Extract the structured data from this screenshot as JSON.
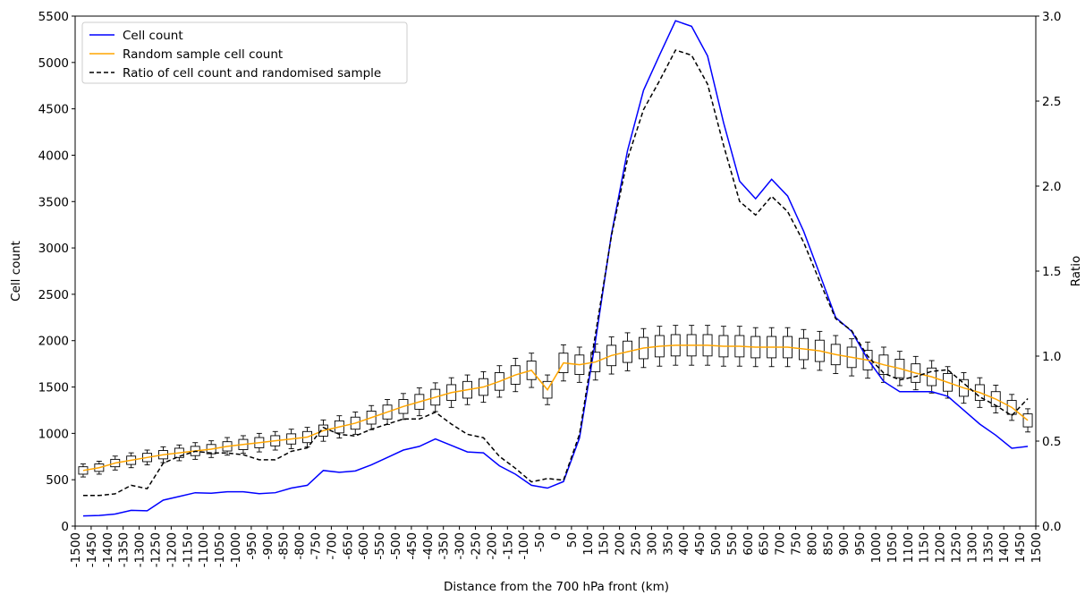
{
  "chart_data": {
    "type": "line",
    "xlabel": "Distance from the 700 hPa front (km)",
    "ylabel": "Cell count",
    "y2label": "Ratio",
    "x": [
      -1475,
      -1425,
      -1375,
      -1325,
      -1275,
      -1225,
      -1175,
      -1125,
      -1075,
      -1025,
      -975,
      -925,
      -875,
      -825,
      -775,
      -725,
      -675,
      -625,
      -575,
      -525,
      -475,
      -425,
      -375,
      -325,
      -275,
      -225,
      -175,
      -125,
      -75,
      -25,
      25,
      75,
      125,
      175,
      225,
      275,
      325,
      375,
      425,
      475,
      525,
      575,
      625,
      675,
      725,
      775,
      825,
      875,
      925,
      975,
      1025,
      1075,
      1125,
      1175,
      1225,
      1275,
      1325,
      1375,
      1425,
      1475
    ],
    "series": [
      {
        "name": "Cell count",
        "color": "#0000ff",
        "values": [
          110,
          115,
          130,
          170,
          165,
          280,
          320,
          360,
          355,
          370,
          370,
          350,
          360,
          410,
          440,
          600,
          580,
          595,
          660,
          740,
          820,
          860,
          940,
          870,
          800,
          790,
          650,
          560,
          440,
          410,
          480,
          950,
          2000,
          3150,
          4050,
          4700,
          5080,
          5450,
          5390,
          5070,
          4350,
          3720,
          3530,
          3740,
          3560,
          3180,
          2720,
          2250,
          2100,
          1800,
          1560,
          1450,
          1450,
          1450,
          1400,
          1250,
          1100,
          980,
          840,
          860
        ]
      },
      {
        "name": "Random sample cell count",
        "color": "#ffa500",
        "values": [
          600,
          630,
          680,
          710,
          740,
          770,
          790,
          810,
          830,
          860,
          880,
          900,
          920,
          940,
          960,
          1030,
          1070,
          1110,
          1170,
          1230,
          1290,
          1340,
          1390,
          1440,
          1470,
          1500,
          1560,
          1630,
          1680,
          1470,
          1760,
          1740,
          1770,
          1840,
          1880,
          1920,
          1940,
          1950,
          1950,
          1950,
          1940,
          1940,
          1930,
          1930,
          1930,
          1910,
          1890,
          1850,
          1820,
          1790,
          1740,
          1700,
          1650,
          1610,
          1550,
          1490,
          1440,
          1370,
          1280,
          1140
        ]
      },
      {
        "name": "Ratio of cell count and randomised sample",
        "color": "#000000",
        "dashed": true,
        "axis": "y2",
        "values": [
          0.18,
          0.18,
          0.19,
          0.24,
          0.22,
          0.37,
          0.41,
          0.44,
          0.43,
          0.43,
          0.42,
          0.39,
          0.39,
          0.44,
          0.46,
          0.58,
          0.54,
          0.53,
          0.57,
          0.6,
          0.63,
          0.63,
          0.67,
          0.6,
          0.54,
          0.52,
          0.41,
          0.34,
          0.26,
          0.28,
          0.27,
          0.54,
          1.13,
          1.71,
          2.16,
          2.45,
          2.62,
          2.8,
          2.77,
          2.6,
          2.24,
          1.91,
          1.83,
          1.94,
          1.85,
          1.67,
          1.44,
          1.22,
          1.15,
          1.0,
          0.9,
          0.86,
          0.88,
          0.91,
          0.92,
          0.84,
          0.76,
          0.71,
          0.65,
          0.75
        ]
      }
    ],
    "boxplot": {
      "q1": [
        560,
        590,
        640,
        665,
        695,
        725,
        740,
        760,
        780,
        810,
        825,
        845,
        865,
        885,
        900,
        970,
        1005,
        1045,
        1100,
        1155,
        1215,
        1260,
        1305,
        1355,
        1380,
        1410,
        1465,
        1530,
        1580,
        1380,
        1655,
        1635,
        1665,
        1730,
        1765,
        1805,
        1825,
        1835,
        1835,
        1835,
        1825,
        1825,
        1815,
        1815,
        1815,
        1795,
        1775,
        1740,
        1710,
        1685,
        1635,
        1600,
        1550,
        1515,
        1455,
        1400,
        1355,
        1290,
        1205,
        1070
      ],
      "q3": [
        640,
        670,
        720,
        755,
        785,
        815,
        840,
        860,
        880,
        910,
        935,
        955,
        975,
        995,
        1020,
        1090,
        1135,
        1175,
        1240,
        1305,
        1365,
        1420,
        1475,
        1525,
        1560,
        1590,
        1655,
        1730,
        1780,
        1560,
        1865,
        1845,
        1875,
        1950,
        1995,
        2035,
        2055,
        2065,
        2065,
        2065,
        2055,
        2055,
        2045,
        2045,
        2045,
        2025,
        2005,
        1960,
        1930,
        1895,
        1845,
        1800,
        1750,
        1705,
        1645,
        1580,
        1525,
        1450,
        1355,
        1210
      ],
      "whisker_low": [
        530,
        560,
        605,
        630,
        660,
        685,
        705,
        720,
        740,
        765,
        785,
        800,
        820,
        835,
        855,
        915,
        950,
        990,
        1040,
        1095,
        1150,
        1190,
        1235,
        1280,
        1310,
        1335,
        1390,
        1450,
        1495,
        1310,
        1565,
        1550,
        1575,
        1640,
        1675,
        1710,
        1725,
        1735,
        1735,
        1735,
        1725,
        1725,
        1720,
        1720,
        1720,
        1700,
        1680,
        1645,
        1620,
        1595,
        1550,
        1515,
        1470,
        1435,
        1380,
        1325,
        1280,
        1220,
        1140,
        1015
      ],
      "whisker_high": [
        670,
        700,
        755,
        790,
        820,
        855,
        875,
        900,
        920,
        955,
        975,
        1000,
        1020,
        1045,
        1065,
        1145,
        1190,
        1230,
        1300,
        1365,
        1430,
        1490,
        1545,
        1600,
        1630,
        1665,
        1730,
        1810,
        1865,
        1630,
        1955,
        1930,
        1965,
        2040,
        2085,
        2130,
        2155,
        2165,
        2165,
        2165,
        2155,
        2155,
        2140,
        2140,
        2140,
        2120,
        2100,
        2055,
        2020,
        1985,
        1930,
        1885,
        1830,
        1785,
        1720,
        1655,
        1600,
        1520,
        1420,
        1265
      ]
    },
    "xlim": [
      -1500,
      1500
    ],
    "xticks": [
      -1500,
      -1450,
      -1400,
      -1350,
      -1300,
      -1250,
      -1200,
      -1150,
      -1100,
      -1050,
      -1000,
      -950,
      -900,
      -850,
      -800,
      -750,
      -700,
      -650,
      -600,
      -550,
      -500,
      -450,
      -400,
      -350,
      -300,
      -250,
      -200,
      -150,
      -100,
      -50,
      0,
      50,
      100,
      150,
      200,
      250,
      300,
      350,
      400,
      450,
      500,
      550,
      600,
      650,
      700,
      750,
      800,
      850,
      900,
      950,
      1000,
      1050,
      1100,
      1150,
      1200,
      1250,
      1300,
      1350,
      1400,
      1450,
      1500
    ],
    "ylim": [
      0,
      5500
    ],
    "yticks": [
      0,
      500,
      1000,
      1500,
      2000,
      2500,
      3000,
      3500,
      4000,
      4500,
      5000,
      5500
    ],
    "y2lim": [
      0,
      3
    ],
    "y2ticks": [
      {
        "value": 0,
        "label": "0.0"
      },
      0.5,
      {
        "value": 1,
        "label": "1.0"
      },
      1.5,
      {
        "value": 2,
        "label": "2.0"
      },
      2.5,
      {
        "value": 3,
        "label": "3.0"
      }
    ],
    "legend": "upper left"
  }
}
